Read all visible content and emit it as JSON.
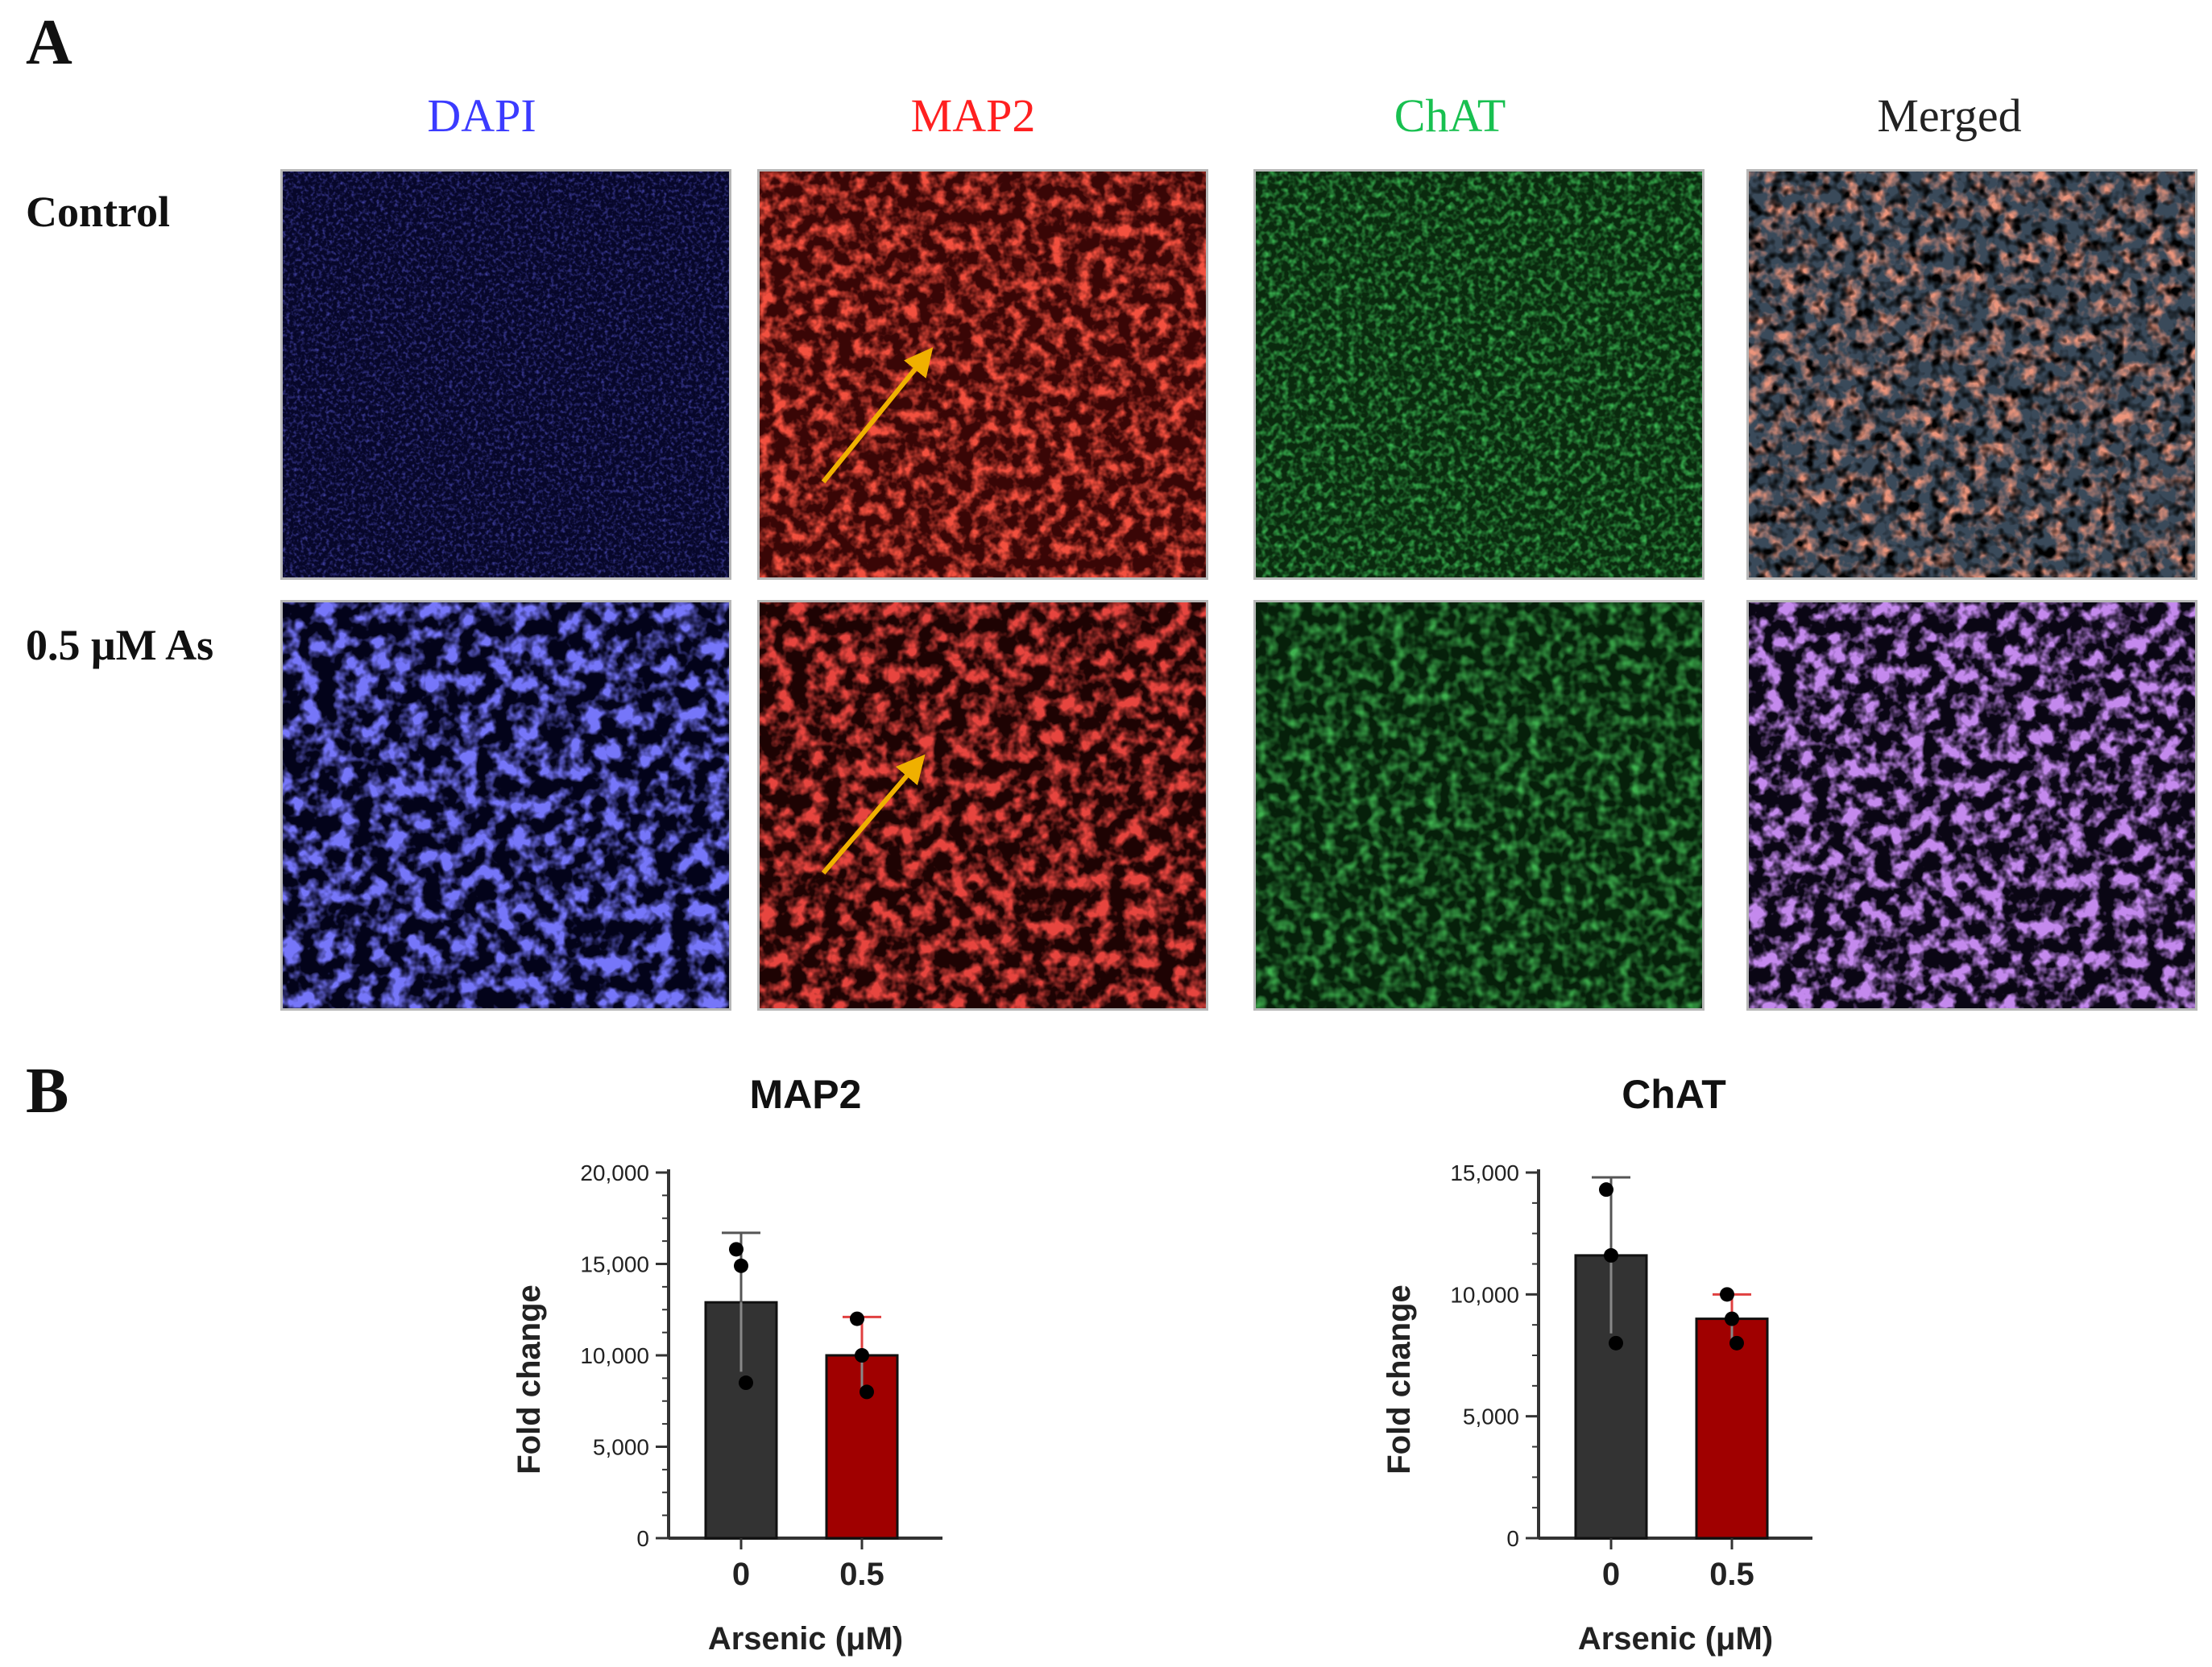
{
  "figure": {
    "panel_a_label": "A",
    "panel_b_label": "B",
    "channels": [
      {
        "label": "DAPI",
        "color": "#3b3bff"
      },
      {
        "label": "MAP2",
        "color": "#ff2020"
      },
      {
        "label": "ChAT",
        "color": "#18c050"
      },
      {
        "label": "Merged",
        "color": "#222222"
      }
    ],
    "rows": [
      {
        "label": "Control"
      },
      {
        "label": "0.5 μM As"
      }
    ]
  },
  "chart_data": [
    {
      "type": "bar",
      "title": "MAP2",
      "xlabel": "Arsenic (μM)",
      "ylabel": "Fold change",
      "categories": [
        "0",
        "0.5"
      ],
      "values": [
        12900,
        10000
      ],
      "error": [
        3800,
        2100
      ],
      "points": [
        [
          15800,
          14900,
          8500
        ],
        [
          12000,
          10000,
          8000
        ]
      ],
      "ylim": [
        0,
        20000
      ],
      "yticks": [
        "0",
        "5,000",
        "10,000",
        "15,000",
        "20,000"
      ],
      "colors": [
        "#333333",
        "#a00000"
      ],
      "grid": false
    },
    {
      "type": "bar",
      "title": "ChAT",
      "xlabel": "Arsenic (μM)",
      "ylabel": "Fold change",
      "categories": [
        "0",
        "0.5"
      ],
      "values": [
        11600,
        9000
      ],
      "error": [
        3200,
        1000
      ],
      "points": [
        [
          14300,
          11600,
          8000
        ],
        [
          10000,
          9000,
          8000
        ]
      ],
      "ylim": [
        0,
        15000
      ],
      "yticks": [
        "0",
        "5,000",
        "10,000",
        "15,000"
      ],
      "colors": [
        "#333333",
        "#a00000"
      ],
      "grid": false
    }
  ]
}
